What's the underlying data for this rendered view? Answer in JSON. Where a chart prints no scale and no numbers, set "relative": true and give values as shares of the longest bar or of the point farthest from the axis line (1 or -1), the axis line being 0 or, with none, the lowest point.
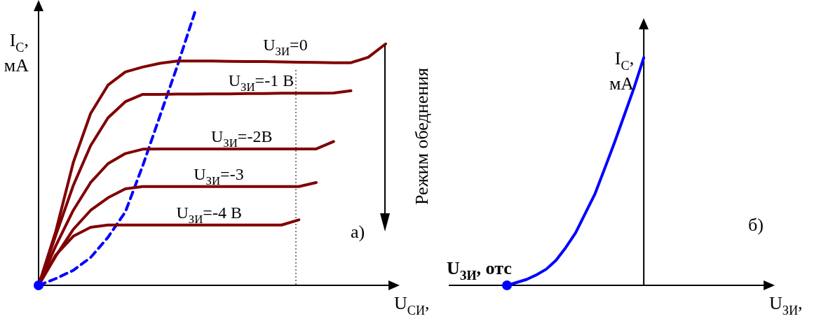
{
  "chart_data": [
    {
      "type": "line",
      "relative": true,
      "xlabel": "U$_{СИ}$,",
      "ylabel": "I$_{С}$, мА",
      "ylim": [
        0,
        1.01
      ],
      "legend": false,
      "marker": "none",
      "categories": [
        null,
        null,
        null,
        null,
        null,
        null,
        null,
        null,
        null,
        null,
        null,
        null,
        null,
        null,
        null,
        null,
        null,
        null,
        null,
        null,
        null
      ],
      "annotations": [
        "а)",
        "Режим обеднения"
      ],
      "series": [
        {
          "name": "U$_{ЗИ}$=0",
          "color": "#800000",
          "values": [
            0,
            0.2,
            0.45,
            0.63,
            0.734,
            0.782,
            0.8,
            0.814,
            0.822,
            0.822,
            0.822,
            0.821,
            0.82,
            0.82,
            0.819,
            0.818,
            0.817,
            0.816,
            0.816,
            0.836,
            0.885
          ]
        },
        {
          "name": "U$_{ЗИ}$=-1 В",
          "color": "#800000",
          "values": [
            0,
            0.185,
            0.366,
            0.512,
            0.614,
            0.673,
            0.7,
            0.7,
            0.701,
            0.701,
            0.702,
            0.702,
            0.703,
            0.703,
            0.704,
            0.704,
            0.704,
            0.705,
            0.713,
            null,
            null
          ]
        },
        {
          "name": "U$_{ЗИ}$=-2В",
          "color": "#800000",
          "values": [
            0,
            0.146,
            0.275,
            0.377,
            0.446,
            0.483,
            0.499,
            0.5,
            0.5,
            0.5,
            0.5,
            0.5,
            0.5,
            0.5,
            0.5,
            0.5,
            0.5,
            0.527,
            null,
            null,
            null
          ]
        },
        {
          "name": "U$_{ЗИ}$=-3",
          "color": "#800000",
          "values": [
            0,
            0.108,
            0.205,
            0.275,
            0.321,
            0.354,
            0.362,
            0.362,
            0.362,
            0.362,
            0.362,
            0.362,
            0.362,
            0.362,
            0.362,
            0.362,
            0.377,
            null,
            null,
            null,
            null
          ]
        },
        {
          "name": "U$_{ЗИ}$=-4 В",
          "color": "#800000",
          "values": [
            0,
            0.112,
            0.18,
            0.213,
            0.221,
            0.221,
            0.221,
            0.221,
            0.221,
            0.221,
            0.221,
            0.221,
            0.221,
            0.221,
            0.221,
            0.24,
            null,
            null,
            null,
            null,
            null
          ]
        },
        {
          "color": "#0000ff",
          "line_style": "dashed",
          "values": [
            0,
            0.025,
            0.055,
            0.102,
            0.176,
            0.269,
            0.438,
            0.622,
            0.805,
            1,
            null,
            null,
            null,
            null,
            null,
            null,
            null,
            null,
            null,
            null,
            null
          ]
        }
      ]
    },
    {
      "type": "line",
      "relative": true,
      "xlabel": "U$_{ЗИ}$,",
      "ylabel": "I$_{С}$, мА",
      "ylim": [
        0,
        1.13
      ],
      "legend": false,
      "marker": "none",
      "categories": [
        null,
        null,
        null,
        null,
        null,
        null,
        null,
        null,
        null,
        null,
        null,
        null,
        null,
        null,
        null,
        null,
        null,
        null,
        null,
        null,
        null,
        null,
        null,
        null,
        null,
        null,
        null,
        null,
        null,
        null,
        null,
        null,
        null
      ],
      "annotations": [
        "б)",
        "U$_{ЗИ}$, отс"
      ],
      "series": [
        {
          "color": "#0000ff",
          "values": [
            null,
            null,
            null,
            null,
            null,
            null,
            0,
            0.013,
            0.026,
            0.046,
            0.071,
            0.11,
            0.166,
            0.23,
            0.316,
            0.402,
            0.514,
            0.627,
            0.747,
            0.867,
            1,
            null,
            null,
            null,
            null,
            null,
            null,
            null,
            null,
            null,
            null,
            null,
            null
          ]
        }
      ]
    }
  ]
}
